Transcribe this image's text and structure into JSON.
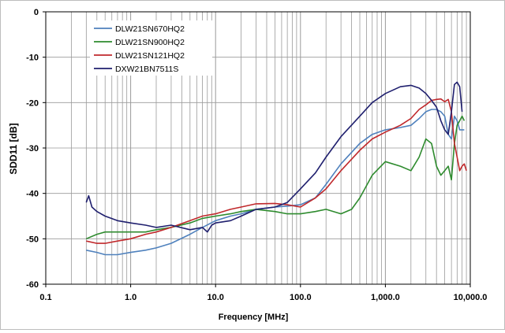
{
  "chart_data": {
    "type": "line",
    "title": "",
    "xlabel": "Frequency [MHz]",
    "ylabel": "SDD11 [dB]",
    "xscale": "log",
    "xlim": [
      0.1,
      10000
    ],
    "ylim": [
      -60,
      0
    ],
    "grid": true,
    "legend_position": "top-left",
    "x_tick_labels": [
      "0.1",
      "1.0",
      "10.0",
      "100.0",
      "1,000.0",
      "10,000.0"
    ],
    "x_tick_values": [
      0.1,
      1,
      10,
      100,
      1000,
      10000
    ],
    "y_tick_labels": [
      "0",
      "-10",
      "-20",
      "-30",
      "-40",
      "-50",
      "-60"
    ],
    "y_tick_values": [
      0,
      -10,
      -20,
      -30,
      -40,
      -50,
      -60
    ],
    "series": [
      {
        "name": "DLW21SN670HQ2",
        "color": "#4f81bd",
        "x": [
          0.3,
          0.4,
          0.5,
          0.7,
          1,
          1.5,
          2,
          3,
          5,
          7,
          10,
          15,
          20,
          30,
          50,
          70,
          100,
          150,
          200,
          300,
          500,
          700,
          1000,
          1500,
          2000,
          2500,
          3000,
          3500,
          4000,
          4500,
          5000,
          5500,
          6000,
          6500,
          7000,
          7500,
          8000,
          8500
        ],
        "values": [
          -52.5,
          -53,
          -53.5,
          -53.5,
          -53,
          -52.5,
          -52,
          -51,
          -49,
          -47.5,
          -46,
          -45,
          -44.5,
          -43.5,
          -43,
          -42.8,
          -42.5,
          -41,
          -38,
          -33.5,
          -29,
          -27,
          -26,
          -25.5,
          -25,
          -23.5,
          -22,
          -21.5,
          -21.5,
          -22,
          -23,
          -27,
          -28,
          -23,
          -24,
          -26,
          -26,
          -26
        ]
      },
      {
        "name": "DLW21SN900HQ2",
        "color": "#2e8b2e",
        "x": [
          0.3,
          0.4,
          0.5,
          0.7,
          1,
          1.5,
          2,
          3,
          5,
          7,
          10,
          15,
          20,
          30,
          50,
          70,
          100,
          150,
          200,
          300,
          400,
          500,
          700,
          1000,
          1500,
          2000,
          2500,
          3000,
          3500,
          4000,
          4500,
          5000,
          5500,
          6000,
          6500,
          7000,
          7500,
          8000,
          8500
        ],
        "values": [
          -50,
          -49,
          -48.5,
          -48.5,
          -48.5,
          -48.5,
          -48,
          -47.5,
          -46.5,
          -45.5,
          -45,
          -44.5,
          -44,
          -43.5,
          -44,
          -44.5,
          -44.5,
          -44,
          -43.5,
          -44.5,
          -43.5,
          -41,
          -36,
          -33,
          -34,
          -35,
          -32,
          -28,
          -29,
          -34,
          -36,
          -35,
          -34,
          -37,
          -29,
          -25,
          -24,
          -23,
          -24
        ]
      },
      {
        "name": "DLW21SN121HQ2",
        "color": "#c0282b",
        "x": [
          0.3,
          0.4,
          0.5,
          0.7,
          1,
          1.5,
          2,
          3,
          5,
          7,
          10,
          15,
          20,
          30,
          50,
          70,
          100,
          150,
          200,
          300,
          500,
          700,
          1000,
          1500,
          2000,
          2500,
          3000,
          3500,
          4000,
          4500,
          5000,
          5500,
          6000,
          6500,
          7000,
          7500,
          8000,
          8500,
          9000
        ],
        "values": [
          -50.5,
          -51,
          -51,
          -50.5,
          -50,
          -49,
          -48.5,
          -47.5,
          -46,
          -45,
          -44.5,
          -43.5,
          -43,
          -42.3,
          -42.2,
          -42.5,
          -43,
          -41,
          -39,
          -35,
          -30.5,
          -28,
          -26.5,
          -25,
          -23.5,
          -21.5,
          -20.5,
          -19.5,
          -19.3,
          -19.2,
          -19.8,
          -19.3,
          -22,
          -29,
          -32,
          -35,
          -34,
          -33.5,
          -35
        ]
      },
      {
        "name": "DXW21BN7511S",
        "color": "#1f1f6e",
        "x": [
          0.3,
          0.32,
          0.35,
          0.4,
          0.5,
          0.7,
          1,
          1.5,
          2,
          3,
          5,
          7,
          8,
          9,
          10,
          15,
          20,
          30,
          50,
          70,
          100,
          150,
          200,
          300,
          500,
          700,
          1000,
          1500,
          2000,
          2500,
          3000,
          3500,
          4000,
          4500,
          5000,
          5500,
          6000,
          6500,
          7000,
          7500,
          8000
        ],
        "values": [
          -42,
          -40.5,
          -43,
          -44,
          -45,
          -46,
          -46.5,
          -47,
          -47.5,
          -47,
          -48,
          -47.5,
          -48.5,
          -47,
          -46.5,
          -46,
          -45,
          -43.5,
          -43,
          -42,
          -39,
          -35.5,
          -32,
          -27.5,
          -23,
          -20,
          -18,
          -16.5,
          -16.2,
          -16.8,
          -18,
          -19.5,
          -21,
          -24,
          -26,
          -27,
          -22,
          -16,
          -15.5,
          -16.5,
          -22
        ]
      }
    ]
  }
}
